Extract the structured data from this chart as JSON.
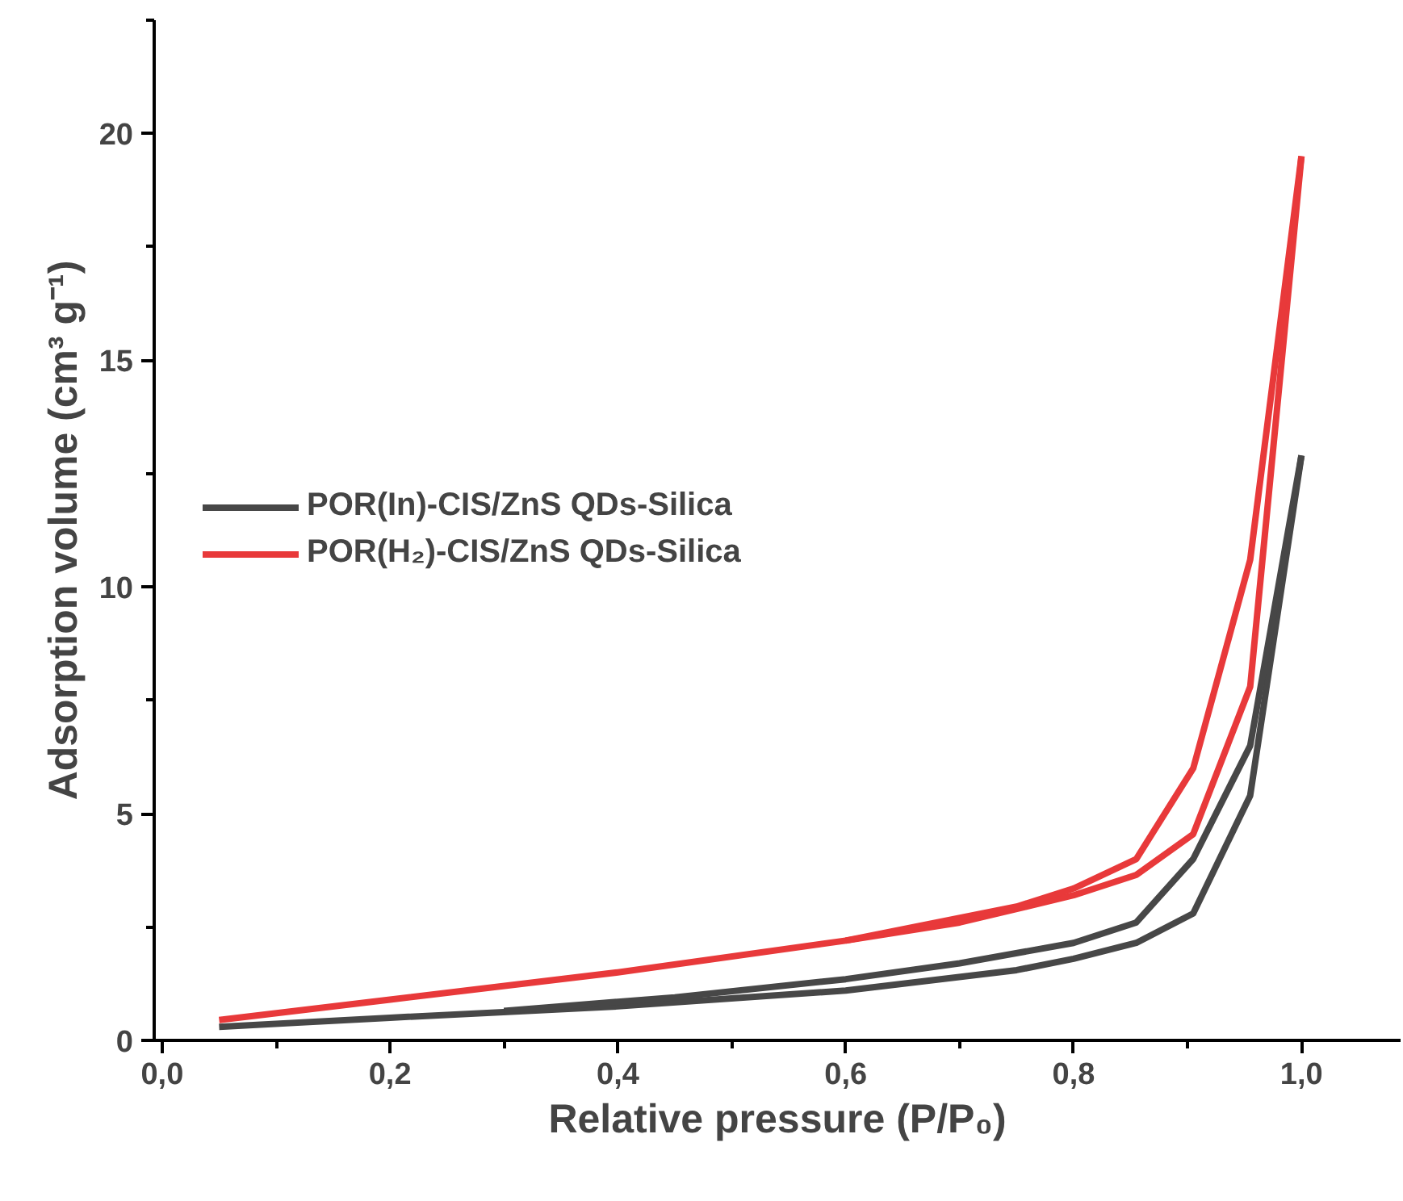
{
  "chart_data": {
    "type": "line",
    "xlabel": "Relative pressure (P/P₀)",
    "ylabel": "Adsorption volume (cm³ g⁻¹)",
    "xlim": [
      -0.007,
      1.087
    ],
    "ylim": [
      0,
      22.5
    ],
    "xticks": [
      {
        "value": 0,
        "label": "0,0"
      },
      {
        "value": 0.2,
        "label": "0,2"
      },
      {
        "value": 0.4,
        "label": "0,4"
      },
      {
        "value": 0.6,
        "label": "0,6"
      },
      {
        "value": 0.8,
        "label": "0,8"
      },
      {
        "value": 1.0,
        "label": "1,0"
      }
    ],
    "yticks": [
      0,
      5,
      10,
      15,
      20
    ],
    "legend": "left",
    "series": [
      {
        "name": "POR(In)-CIS/ZnS QDs-Silica",
        "color": "#474747",
        "x": [
          0.05,
          0.2,
          0.4,
          0.6,
          0.75,
          0.8,
          0.855,
          0.905,
          0.955,
          1.0
        ],
        "values": [
          0.3,
          0.5,
          0.75,
          1.1,
          1.55,
          1.8,
          2.15,
          2.8,
          5.4,
          12.9
        ]
      },
      {
        "color": "#474747",
        "x": [
          0.3,
          0.45,
          0.6,
          0.7,
          0.8,
          0.855,
          0.905,
          0.955,
          1.0
        ],
        "values": [
          0.65,
          0.95,
          1.35,
          1.7,
          2.15,
          2.6,
          4.0,
          6.5,
          12.9
        ]
      },
      {
        "name": "POR(H₂)-CIS/ZnS QDs-Silica",
        "color": "#e8393a",
        "x": [
          0.05,
          0.2,
          0.4,
          0.6,
          0.7,
          0.8,
          0.855,
          0.905,
          0.955,
          1.0
        ],
        "values": [
          0.45,
          0.9,
          1.5,
          2.2,
          2.6,
          3.2,
          3.65,
          4.55,
          7.8,
          19.5
        ]
      },
      {
        "color": "#e8393a",
        "x": [
          0.6,
          0.75,
          0.8,
          0.855,
          0.905,
          0.955,
          1.0
        ],
        "values": [
          2.2,
          2.95,
          3.35,
          4.0,
          6.0,
          10.6,
          19.5
        ]
      }
    ]
  }
}
